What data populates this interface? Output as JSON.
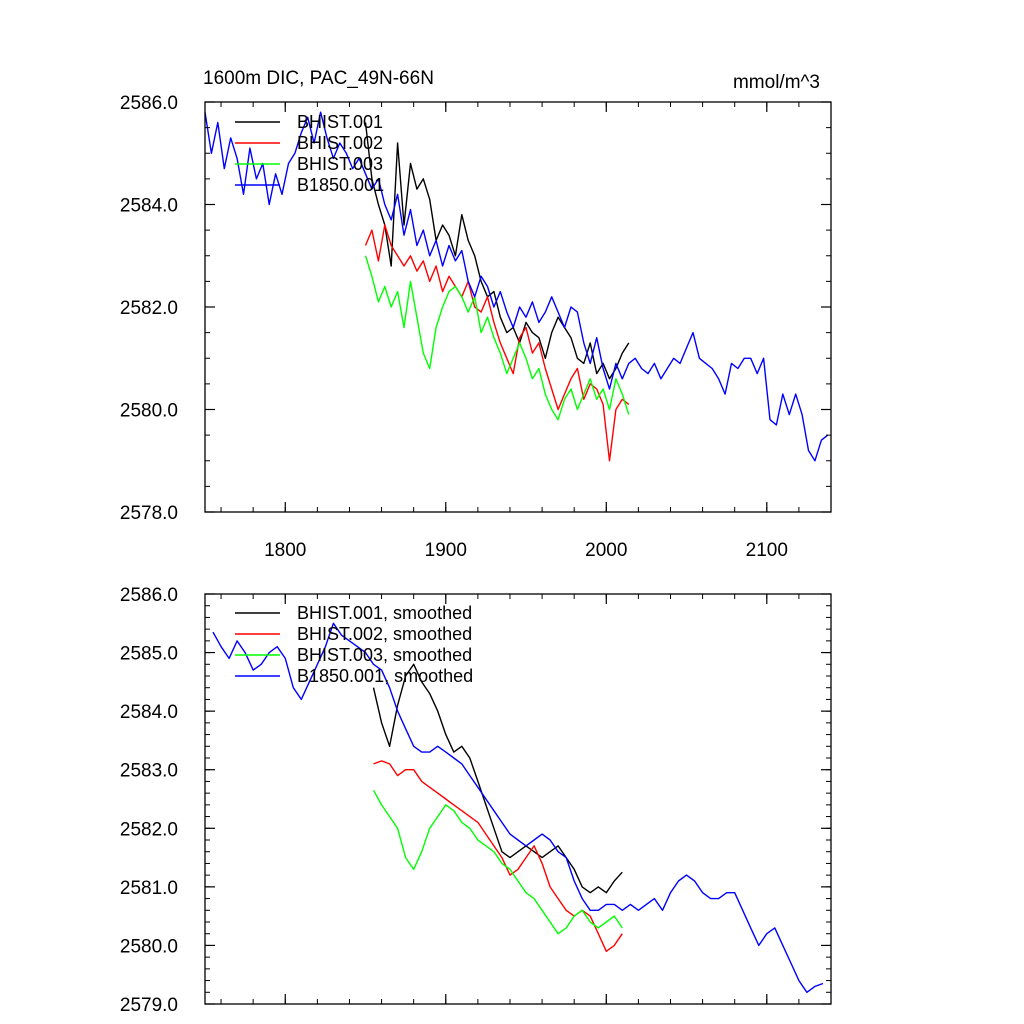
{
  "chart_data": [
    {
      "type": "line",
      "title": "1600m DIC, PAC_49N-66N",
      "units": "mmol/m^3",
      "xlim": [
        1750,
        2140
      ],
      "ylim": [
        2578.0,
        2586.0
      ],
      "xticks": [
        1800,
        1900,
        2000,
        2100
      ],
      "xtick_labels": [
        "1800",
        "1900",
        "2000",
        "2100"
      ],
      "yticks": [
        2578.0,
        2580.0,
        2582.0,
        2584.0,
        2586.0
      ],
      "ytick_labels": [
        "2578.0",
        "2580.0",
        "2582.0",
        "2584.0",
        "2586.0"
      ],
      "series": [
        {
          "name": "BHIST.001",
          "color": "#000000",
          "x": [
            1850,
            1854,
            1858,
            1862,
            1866,
            1870,
            1874,
            1878,
            1882,
            1886,
            1890,
            1894,
            1898,
            1902,
            1906,
            1910,
            1914,
            1918,
            1922,
            1926,
            1930,
            1934,
            1938,
            1942,
            1946,
            1950,
            1954,
            1958,
            1962,
            1966,
            1970,
            1974,
            1978,
            1982,
            1986,
            1990,
            1994,
            1998,
            2002,
            2006,
            2010,
            2014
          ],
          "y": [
            2585.6,
            2584.5,
            2584.0,
            2583.6,
            2582.8,
            2585.2,
            2583.6,
            2584.8,
            2584.3,
            2584.5,
            2584.1,
            2583.3,
            2583.6,
            2583.4,
            2583.0,
            2583.8,
            2583.3,
            2583.0,
            2582.5,
            2582.2,
            2582.3,
            2581.8,
            2581.5,
            2581.6,
            2581.3,
            2581.7,
            2581.5,
            2581.4,
            2581.0,
            2581.5,
            2581.8,
            2581.6,
            2581.4,
            2581.0,
            2580.9,
            2581.3,
            2580.7,
            2580.9,
            2580.6,
            2580.8,
            2581.1,
            2581.3
          ]
        },
        {
          "name": "BHIST.002",
          "color": "#ff0000",
          "x": [
            1850,
            1854,
            1858,
            1862,
            1866,
            1870,
            1874,
            1878,
            1882,
            1886,
            1890,
            1894,
            1898,
            1902,
            1906,
            1910,
            1914,
            1918,
            1922,
            1926,
            1930,
            1934,
            1938,
            1942,
            1946,
            1950,
            1954,
            1958,
            1962,
            1966,
            1970,
            1974,
            1978,
            1982,
            1986,
            1990,
            1994,
            1998,
            2002,
            2006,
            2010,
            2014
          ],
          "y": [
            2583.2,
            2583.5,
            2582.9,
            2583.6,
            2583.2,
            2583.0,
            2582.8,
            2583.0,
            2582.7,
            2582.9,
            2582.5,
            2582.8,
            2582.3,
            2582.6,
            2582.4,
            2582.2,
            2582.5,
            2582.0,
            2581.9,
            2582.2,
            2581.7,
            2581.3,
            2581.0,
            2580.7,
            2581.4,
            2581.6,
            2581.1,
            2581.3,
            2580.8,
            2580.4,
            2580.0,
            2580.3,
            2580.6,
            2580.8,
            2580.2,
            2580.5,
            2580.4,
            2580.1,
            2579.0,
            2580.0,
            2580.2,
            2580.1
          ]
        },
        {
          "name": "BHIST.003",
          "color": "#00ff00",
          "x": [
            1850,
            1854,
            1858,
            1862,
            1866,
            1870,
            1874,
            1878,
            1882,
            1886,
            1890,
            1894,
            1898,
            1902,
            1906,
            1910,
            1914,
            1918,
            1922,
            1926,
            1930,
            1934,
            1938,
            1942,
            1946,
            1950,
            1954,
            1958,
            1962,
            1966,
            1970,
            1974,
            1978,
            1982,
            1986,
            1990,
            1994,
            1998,
            2002,
            2006,
            2010,
            2014
          ],
          "y": [
            2583.0,
            2582.6,
            2582.1,
            2582.4,
            2582.0,
            2582.3,
            2581.6,
            2582.5,
            2581.8,
            2581.1,
            2580.8,
            2581.6,
            2582.0,
            2582.3,
            2582.4,
            2582.2,
            2581.9,
            2582.2,
            2581.5,
            2581.8,
            2581.4,
            2581.1,
            2580.7,
            2581.0,
            2581.3,
            2581.0,
            2580.6,
            2580.8,
            2580.3,
            2580.0,
            2579.8,
            2580.2,
            2580.4,
            2580.0,
            2580.3,
            2580.6,
            2580.2,
            2580.4,
            2580.0,
            2580.6,
            2580.3,
            2579.9
          ]
        },
        {
          "name": "B1850.001",
          "color": "#0000ff",
          "x": [
            1750,
            1754,
            1758,
            1762,
            1766,
            1770,
            1774,
            1778,
            1782,
            1786,
            1790,
            1794,
            1798,
            1802,
            1806,
            1810,
            1814,
            1818,
            1822,
            1826,
            1830,
            1834,
            1838,
            1842,
            1846,
            1850,
            1854,
            1858,
            1862,
            1866,
            1870,
            1874,
            1878,
            1882,
            1886,
            1890,
            1894,
            1898,
            1902,
            1906,
            1910,
            1914,
            1918,
            1922,
            1926,
            1930,
            1934,
            1938,
            1942,
            1946,
            1950,
            1954,
            1958,
            1962,
            1966,
            1970,
            1974,
            1978,
            1982,
            1986,
            1990,
            1994,
            1998,
            2002,
            2006,
            2010,
            2014,
            2018,
            2022,
            2026,
            2030,
            2034,
            2038,
            2042,
            2046,
            2050,
            2054,
            2058,
            2062,
            2066,
            2070,
            2074,
            2078,
            2082,
            2086,
            2090,
            2094,
            2098,
            2102,
            2106,
            2110,
            2114,
            2118,
            2122,
            2126,
            2130,
            2134,
            2138
          ],
          "y": [
            2585.8,
            2585.0,
            2585.6,
            2584.7,
            2585.3,
            2584.9,
            2584.2,
            2585.1,
            2584.5,
            2584.8,
            2584.0,
            2584.6,
            2584.2,
            2584.8,
            2585.0,
            2585.4,
            2585.7,
            2585.2,
            2585.8,
            2585.3,
            2584.9,
            2585.2,
            2585.0,
            2584.7,
            2584.9,
            2584.6,
            2584.3,
            2584.5,
            2584.0,
            2583.7,
            2584.2,
            2583.4,
            2583.9,
            2583.2,
            2583.5,
            2583.0,
            2583.3,
            2582.8,
            2583.2,
            2582.9,
            2583.1,
            2582.5,
            2582.2,
            2582.6,
            2582.4,
            2582.0,
            2582.3,
            2581.9,
            2581.6,
            2582.0,
            2581.8,
            2582.1,
            2581.7,
            2581.9,
            2582.2,
            2581.9,
            2581.6,
            2582.0,
            2581.9,
            2581.3,
            2580.9,
            2581.4,
            2580.8,
            2580.4,
            2580.9,
            2580.6,
            2580.9,
            2581.0,
            2580.8,
            2580.7,
            2580.9,
            2580.6,
            2580.8,
            2581.0,
            2580.9,
            2581.2,
            2581.5,
            2581.0,
            2580.9,
            2580.8,
            2580.6,
            2580.3,
            2580.9,
            2580.8,
            2581.0,
            2581.0,
            2580.7,
            2581.0,
            2579.8,
            2579.7,
            2580.3,
            2579.9,
            2580.3,
            2579.9,
            2579.2,
            2579.0,
            2579.4,
            2579.5
          ]
        }
      ]
    },
    {
      "type": "line",
      "title": "",
      "xlim": [
        1750,
        2140
      ],
      "ylim": [
        2579.0,
        2586.0
      ],
      "xticks": [
        1800,
        1900,
        2000,
        2100
      ],
      "yticks": [
        2579.0,
        2580.0,
        2581.0,
        2582.0,
        2583.0,
        2584.0,
        2585.0,
        2586.0
      ],
      "ytick_labels": [
        "2579.0",
        "2580.0",
        "2581.0",
        "2582.0",
        "2583.0",
        "2584.0",
        "2585.0",
        "2586.0"
      ],
      "series": [
        {
          "name": "BHIST.001, smoothed",
          "color": "#000000",
          "x": [
            1855,
            1860,
            1865,
            1870,
            1875,
            1880,
            1885,
            1890,
            1895,
            1900,
            1905,
            1910,
            1915,
            1920,
            1925,
            1930,
            1935,
            1940,
            1945,
            1950,
            1955,
            1960,
            1965,
            1970,
            1975,
            1980,
            1985,
            1990,
            1995,
            2000,
            2005,
            2010
          ],
          "y": [
            2584.4,
            2583.8,
            2583.4,
            2584.1,
            2584.6,
            2584.8,
            2584.5,
            2584.3,
            2584.0,
            2583.6,
            2583.3,
            2583.4,
            2583.2,
            2582.8,
            2582.4,
            2582.0,
            2581.6,
            2581.5,
            2581.6,
            2581.7,
            2581.6,
            2581.5,
            2581.6,
            2581.7,
            2581.5,
            2581.3,
            2581.0,
            2580.9,
            2581.0,
            2580.9,
            2581.1,
            2581.25
          ]
        },
        {
          "name": "BHIST.002, smoothed",
          "color": "#ff0000",
          "x": [
            1855,
            1860,
            1865,
            1870,
            1875,
            1880,
            1885,
            1890,
            1895,
            1900,
            1905,
            1910,
            1915,
            1920,
            1925,
            1930,
            1935,
            1940,
            1945,
            1950,
            1955,
            1960,
            1965,
            1970,
            1975,
            1980,
            1985,
            1990,
            1995,
            2000,
            2005,
            2010
          ],
          "y": [
            2583.1,
            2583.15,
            2583.1,
            2582.9,
            2583.0,
            2583.0,
            2582.8,
            2582.7,
            2582.6,
            2582.5,
            2582.4,
            2582.3,
            2582.2,
            2582.1,
            2581.9,
            2581.7,
            2581.5,
            2581.2,
            2581.3,
            2581.5,
            2581.7,
            2581.4,
            2581.0,
            2580.8,
            2580.6,
            2580.5,
            2580.6,
            2580.5,
            2580.2,
            2579.9,
            2580.0,
            2580.2
          ]
        },
        {
          "name": "BHIST.003, smoothed",
          "color": "#00ff00",
          "x": [
            1855,
            1860,
            1865,
            1870,
            1875,
            1880,
            1885,
            1890,
            1895,
            1900,
            1905,
            1910,
            1915,
            1920,
            1925,
            1930,
            1935,
            1940,
            1945,
            1950,
            1955,
            1960,
            1965,
            1970,
            1975,
            1980,
            1985,
            1990,
            1995,
            2000,
            2005,
            2010
          ],
          "y": [
            2582.65,
            2582.4,
            2582.2,
            2582.0,
            2581.5,
            2581.3,
            2581.6,
            2582.0,
            2582.2,
            2582.4,
            2582.3,
            2582.1,
            2582.0,
            2581.8,
            2581.7,
            2581.6,
            2581.4,
            2581.3,
            2581.1,
            2580.9,
            2580.8,
            2580.6,
            2580.4,
            2580.2,
            2580.3,
            2580.5,
            2580.6,
            2580.4,
            2580.3,
            2580.4,
            2580.5,
            2580.3
          ]
        },
        {
          "name": "B1850.001, smoothed",
          "color": "#0000ff",
          "x": [
            1755,
            1760,
            1765,
            1770,
            1775,
            1780,
            1785,
            1790,
            1795,
            1800,
            1805,
            1810,
            1815,
            1820,
            1825,
            1830,
            1835,
            1840,
            1845,
            1850,
            1855,
            1860,
            1865,
            1870,
            1875,
            1880,
            1885,
            1890,
            1895,
            1900,
            1905,
            1910,
            1915,
            1920,
            1925,
            1930,
            1935,
            1940,
            1945,
            1950,
            1955,
            1960,
            1965,
            1970,
            1975,
            1980,
            1985,
            1990,
            1995,
            2000,
            2005,
            2010,
            2015,
            2020,
            2025,
            2030,
            2035,
            2040,
            2045,
            2050,
            2055,
            2060,
            2065,
            2070,
            2075,
            2080,
            2085,
            2090,
            2095,
            2100,
            2105,
            2110,
            2115,
            2120,
            2125,
            2130,
            2135
          ],
          "y": [
            2585.35,
            2585.1,
            2584.9,
            2585.2,
            2585.0,
            2584.7,
            2584.8,
            2585.0,
            2585.1,
            2584.9,
            2584.4,
            2584.2,
            2584.5,
            2584.8,
            2585.1,
            2585.5,
            2585.3,
            2585.2,
            2585.1,
            2585.0,
            2584.8,
            2584.7,
            2584.4,
            2584.0,
            2583.7,
            2583.4,
            2583.3,
            2583.3,
            2583.4,
            2583.3,
            2583.2,
            2583.1,
            2582.9,
            2582.7,
            2582.5,
            2582.3,
            2582.1,
            2581.9,
            2581.8,
            2581.7,
            2581.8,
            2581.9,
            2581.8,
            2581.6,
            2581.5,
            2581.1,
            2580.8,
            2580.6,
            2580.6,
            2580.7,
            2580.7,
            2580.6,
            2580.7,
            2580.6,
            2580.7,
            2580.8,
            2580.6,
            2580.9,
            2581.1,
            2581.2,
            2581.1,
            2580.9,
            2580.8,
            2580.8,
            2580.9,
            2580.9,
            2580.6,
            2580.3,
            2580.0,
            2580.2,
            2580.3,
            2580.0,
            2579.7,
            2579.4,
            2579.2,
            2579.3,
            2579.35
          ]
        }
      ]
    }
  ]
}
